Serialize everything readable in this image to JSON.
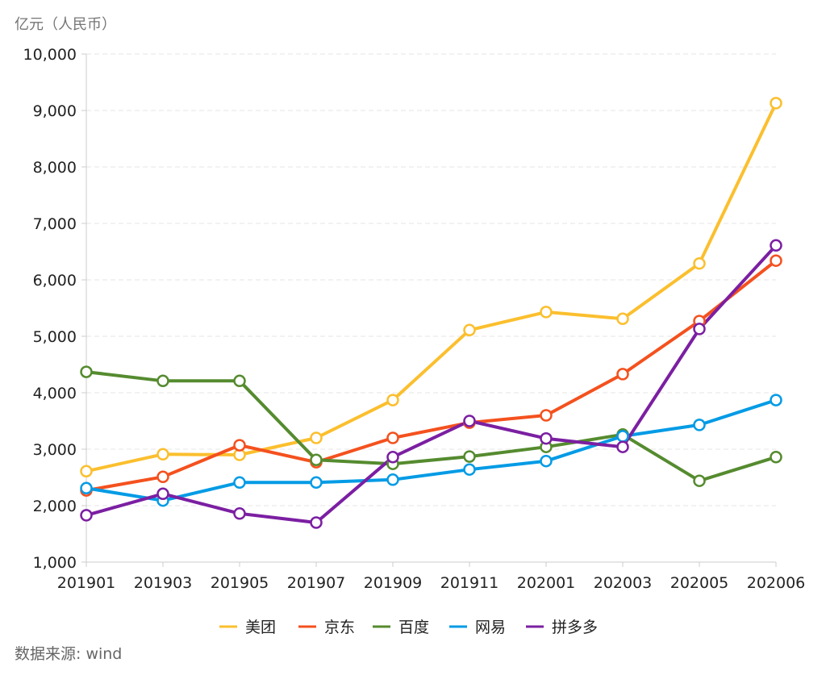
{
  "chart_data": {
    "type": "line",
    "ylabel": "亿元（人民币）",
    "source": "数据来源: wind",
    "ylim": [
      1000,
      10000
    ],
    "yticks": [
      "1,000",
      "2,000",
      "3,000",
      "4,000",
      "5,000",
      "6,000",
      "7,000",
      "8,000",
      "9,000",
      "10,000"
    ],
    "ytick_values": [
      1000,
      2000,
      3000,
      4000,
      5000,
      6000,
      7000,
      8000,
      9000,
      10000
    ],
    "categories": [
      "201901",
      "201903",
      "201905",
      "201907",
      "201909",
      "201911",
      "202001",
      "202003",
      "202005",
      "202006"
    ],
    "grid": "horizontal dashed",
    "legend_position": "bottom",
    "series": [
      {
        "name": "美团",
        "color": "#fbbf2e",
        "values": [
          2610,
          2910,
          2900,
          3200,
          3870,
          5110,
          5430,
          5310,
          6290,
          9130
        ]
      },
      {
        "name": "京东",
        "color": "#f4511e",
        "values": [
          2270,
          2510,
          3070,
          2770,
          3200,
          3470,
          3600,
          4330,
          5270,
          6340
        ]
      },
      {
        "name": "百度",
        "color": "#558b2f",
        "values": [
          4370,
          4210,
          4210,
          2810,
          2740,
          2870,
          3040,
          3260,
          2440,
          2860
        ]
      },
      {
        "name": "网易",
        "color": "#039be5",
        "values": [
          2310,
          2090,
          2410,
          2410,
          2460,
          2640,
          2790,
          3230,
          3430,
          3870
        ]
      },
      {
        "name": "拼多多",
        "color": "#7b1fa2",
        "values": [
          1830,
          2210,
          1860,
          1700,
          2860,
          3500,
          3190,
          3040,
          5130,
          6610
        ]
      }
    ]
  }
}
